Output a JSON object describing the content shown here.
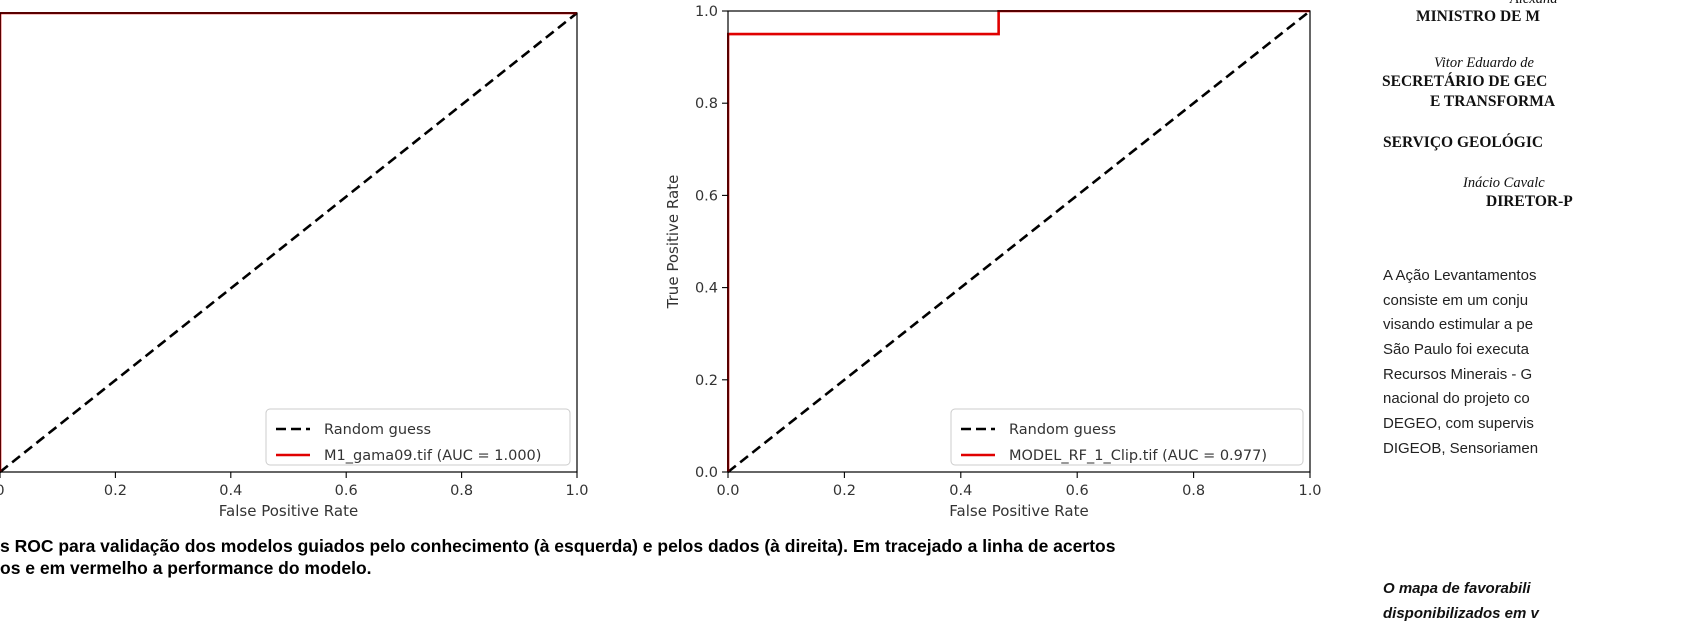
{
  "chart_data": [
    {
      "type": "line",
      "xlabel": "False Positive Rate",
      "ylabel": "",
      "xlim": [
        0.0,
        1.0
      ],
      "ylim": [
        0.0,
        1.0
      ],
      "xticks": [
        "0",
        "0.2",
        "0.4",
        "0.6",
        "0.8",
        "1.0"
      ],
      "xticks_values": [
        0.0,
        0.2,
        0.4,
        0.6,
        0.8,
        1.0
      ],
      "grid": false,
      "legend_position": "lower-right",
      "series": [
        {
          "name": "Random guess",
          "style": "dashed",
          "color": "#000000",
          "x": [
            0,
            1
          ],
          "y": [
            0,
            1
          ]
        },
        {
          "name": "M1_gama09.tif (AUC = 1.000)",
          "style": "solid",
          "color": "#e00000",
          "x": [
            0,
            0,
            1
          ],
          "y": [
            0,
            1,
            1
          ]
        }
      ]
    },
    {
      "type": "line",
      "xlabel": "False Positive Rate",
      "ylabel": "True Positive Rate",
      "xlim": [
        0.0,
        1.0
      ],
      "ylim": [
        0.0,
        1.0
      ],
      "xticks": [
        "0.0",
        "0.2",
        "0.4",
        "0.6",
        "0.8",
        "1.0"
      ],
      "xticks_values": [
        0.0,
        0.2,
        0.4,
        0.6,
        0.8,
        1.0
      ],
      "yticks": [
        "0.0",
        "0.2",
        "0.4",
        "0.6",
        "0.8",
        "1.0"
      ],
      "yticks_values": [
        0.0,
        0.2,
        0.4,
        0.6,
        0.8,
        1.0
      ],
      "grid": false,
      "legend_position": "lower-right",
      "series": [
        {
          "name": "Random guess",
          "style": "dashed",
          "color": "#000000",
          "x": [
            0,
            1
          ],
          "y": [
            0,
            1
          ]
        },
        {
          "name": "MODEL_RF_1_Clip.tif (AUC = 0.977)",
          "style": "solid",
          "color": "#e00000",
          "x": [
            0,
            0,
            0.465,
            0.465,
            1
          ],
          "y": [
            0,
            0.95,
            0.95,
            1,
            1
          ]
        }
      ]
    }
  ],
  "caption": {
    "line1": "s ROC para validação dos modelos guiados pelo conhecimento (à esquerda) e pelos dados (à direita). Em tracejado a linha de acertos",
    "line2": "os e em vermelho a performance do modelo."
  },
  "credits": {
    "name1": "Alexand",
    "role1": "MINISTRO DE M",
    "name2": "Vitor Eduardo de",
    "role2a": "SECRETÁRIO DE GEC",
    "role2b": "E TRANSFORMA",
    "org": "SERVIÇO GEOLÓGIC",
    "name3": "Inácio Cavalc",
    "role3": "DIRETOR-P"
  },
  "paragraph": [
    "A Ação Levantamentos",
    "consiste em um conju",
    "visando estimular a pe",
    "São Paulo foi executa",
    "Recursos Minerais - G",
    "nacional do projeto co",
    "DEGEO, com supervis",
    "DIGEOB, Sensoriamen"
  ],
  "note": {
    "line1": "O mapa de favorabili",
    "line2": "disponibilizados em v"
  }
}
